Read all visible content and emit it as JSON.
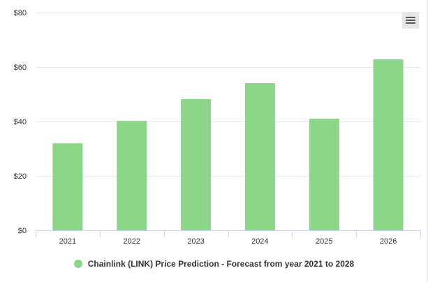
{
  "chart_data": {
    "type": "bar",
    "categories": [
      "2021",
      "2022",
      "2023",
      "2024",
      "2025",
      "2026"
    ],
    "series": [
      {
        "name": "Chainlink (LINK) Price Prediction - Forecast from year 2021 to 2028",
        "values": [
          32.0,
          40.2,
          48.2,
          54.1,
          41.0,
          62.8
        ]
      }
    ],
    "y_tick_labels": [
      "$0",
      "$20",
      "$40",
      "$60",
      "$80"
    ],
    "y_ticks": [
      0,
      20,
      40,
      60,
      80
    ],
    "ylim": [
      0,
      80
    ],
    "title": "",
    "xlabel": "",
    "ylabel": "",
    "grid": "horizontal",
    "legend": "bottom-center",
    "colors": {
      "bar": "#8cd68a",
      "grid": "#e6e6e6",
      "axis": "#ccd6eb",
      "tick_text": "#333333"
    }
  },
  "toolbar": {
    "menu_icon": "hamburger-menu-icon"
  }
}
